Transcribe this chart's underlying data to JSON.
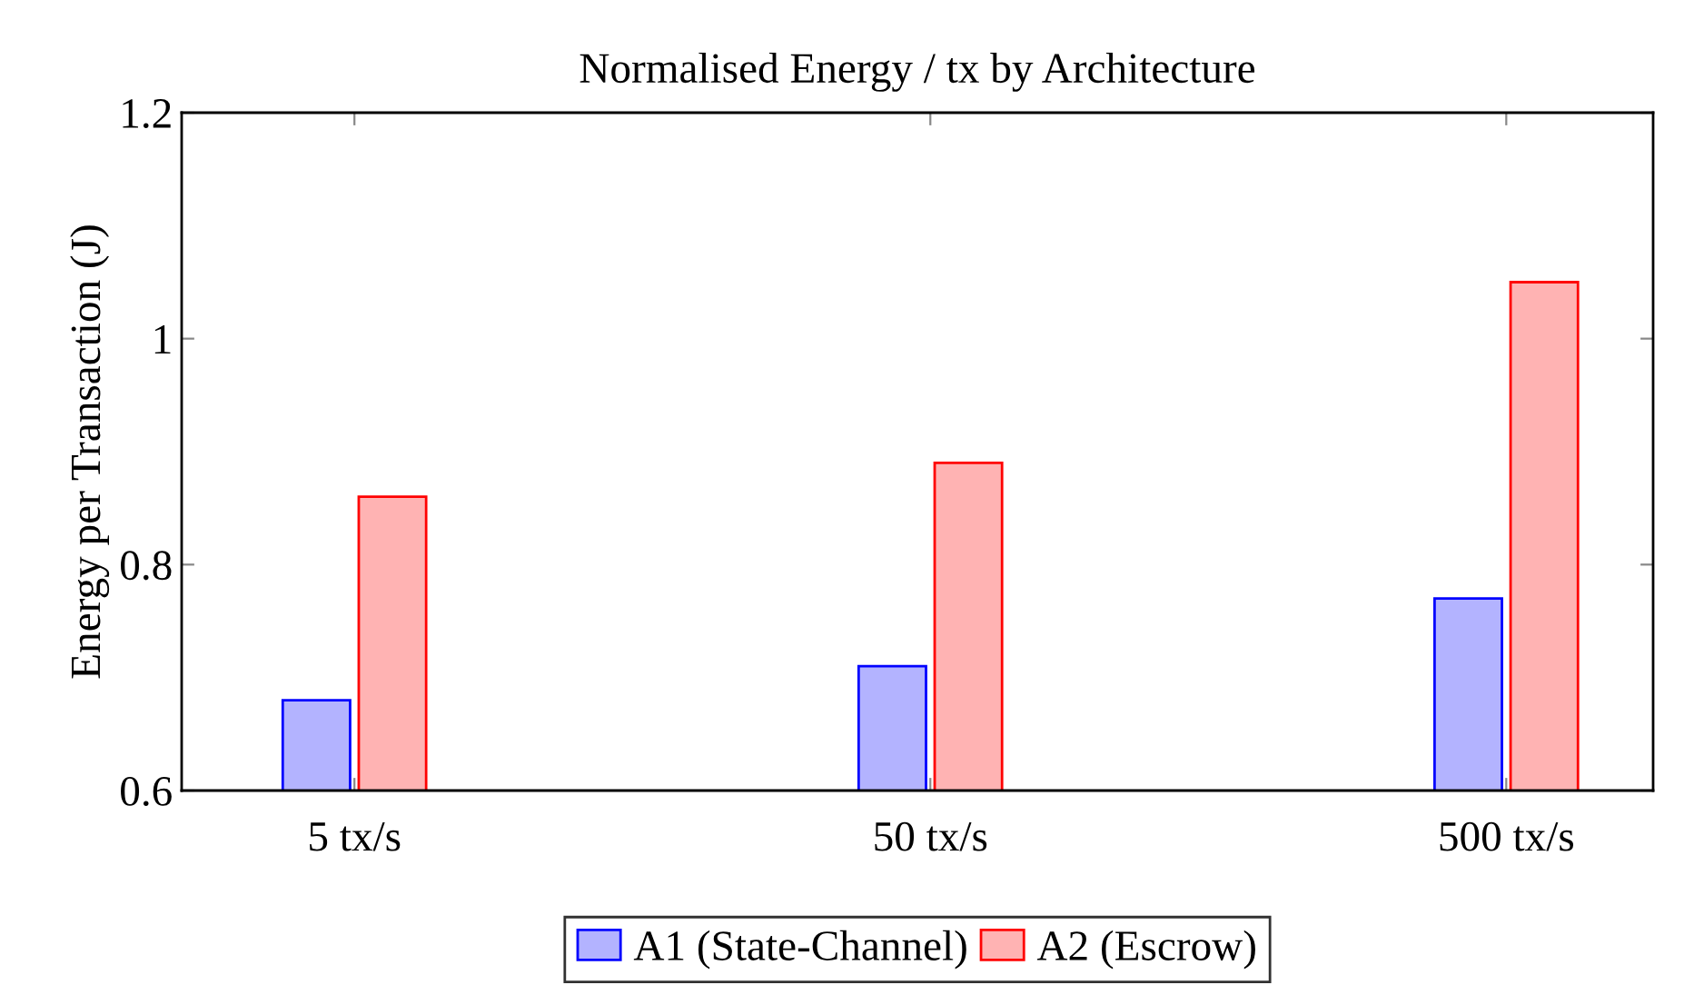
{
  "chart_data": {
    "type": "bar",
    "title": "Normalised Energy / tx by Architecture",
    "ylabel": "Energy per Transaction (J)",
    "categories": [
      "5 tx/s",
      "50 tx/s",
      "500 tx/s"
    ],
    "series": [
      {
        "name": "A1 (State-Channel)",
        "color": "#b3b3ff",
        "values": [
          0.68,
          0.71,
          0.77
        ]
      },
      {
        "name": "A2 (Escrow)",
        "color": "#ffb3b3",
        "values": [
          0.86,
          0.89,
          1.05
        ]
      }
    ],
    "ylim": [
      0.6,
      1.2
    ],
    "yticks": [
      0.6,
      0.8,
      1,
      1.2
    ],
    "grid": false,
    "legend": "bottom"
  }
}
